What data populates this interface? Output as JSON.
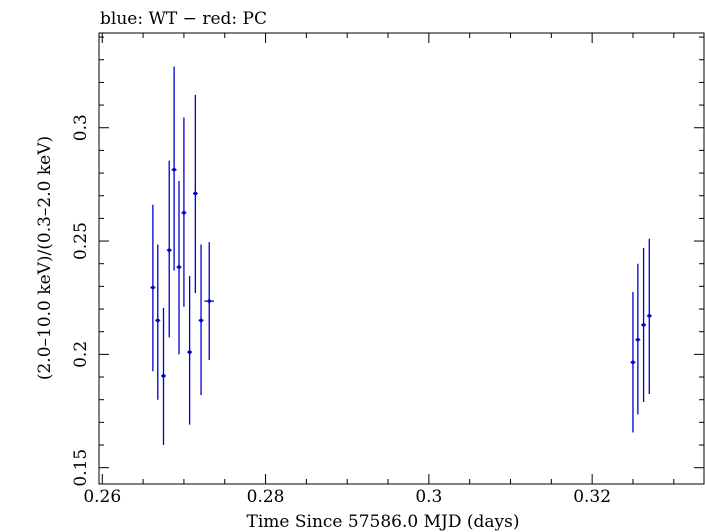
{
  "chart_data": {
    "type": "scatter",
    "title": "blue: WT − red: PC",
    "xlabel": "Time Since 57586.0 MJD (days)",
    "ylabel": "(2.0–10.0 keV)/(0.3–2.0 keV)",
    "xlim": [
      0.2596,
      0.3337
    ],
    "ylim": [
      0.1428,
      0.3418
    ],
    "x_ticks": [
      0.26,
      0.28,
      0.3,
      0.32
    ],
    "x_tick_labels": [
      "0.26",
      "0.28",
      "0.3",
      "0.32"
    ],
    "y_ticks": [
      0.15,
      0.2,
      0.25,
      0.3
    ],
    "y_tick_labels": [
      "0.15",
      "0.2",
      "0.25",
      "0.3"
    ],
    "grid": false,
    "series": [
      {
        "color": "#0000cc",
        "points": [
          {
            "x": 0.2662,
            "y": 0.2295,
            "xerr": 0.0003,
            "ylo": 0.1925,
            "yhi": 0.266
          },
          {
            "x": 0.2668,
            "y": 0.215,
            "xerr": 0.0003,
            "ylo": 0.18,
            "yhi": 0.2485
          },
          {
            "x": 0.2675,
            "y": 0.1905,
            "xerr": 0.0003,
            "ylo": 0.16,
            "yhi": 0.2205
          },
          {
            "x": 0.2682,
            "y": 0.246,
            "xerr": 0.0003,
            "ylo": 0.2075,
            "yhi": 0.2855
          },
          {
            "x": 0.2688,
            "y": 0.2815,
            "xerr": 0.0003,
            "ylo": 0.237,
            "yhi": 0.327
          },
          {
            "x": 0.2694,
            "y": 0.2385,
            "xerr": 0.0003,
            "ylo": 0.2,
            "yhi": 0.2765
          },
          {
            "x": 0.27,
            "y": 0.2625,
            "xerr": 0.0003,
            "ylo": 0.221,
            "yhi": 0.3045
          },
          {
            "x": 0.2707,
            "y": 0.201,
            "xerr": 0.0003,
            "ylo": 0.169,
            "yhi": 0.2345
          },
          {
            "x": 0.2714,
            "y": 0.271,
            "xerr": 0.0003,
            "ylo": 0.227,
            "yhi": 0.3145
          },
          {
            "x": 0.2721,
            "y": 0.215,
            "xerr": 0.0003,
            "ylo": 0.182,
            "yhi": 0.2485
          },
          {
            "x": 0.2731,
            "y": 0.2235,
            "xerr": 0.0006,
            "ylo": 0.1975,
            "yhi": 0.2495
          },
          {
            "x": 0.325,
            "y": 0.1965,
            "xerr": 0.0003,
            "ylo": 0.1655,
            "yhi": 0.2275
          },
          {
            "x": 0.3256,
            "y": 0.2065,
            "xerr": 0.0003,
            "ylo": 0.1735,
            "yhi": 0.24
          },
          {
            "x": 0.3263,
            "y": 0.213,
            "xerr": 0.0003,
            "ylo": 0.179,
            "yhi": 0.247
          },
          {
            "x": 0.327,
            "y": 0.217,
            "xerr": 0.0003,
            "ylo": 0.1825,
            "yhi": 0.251
          }
        ]
      }
    ]
  }
}
